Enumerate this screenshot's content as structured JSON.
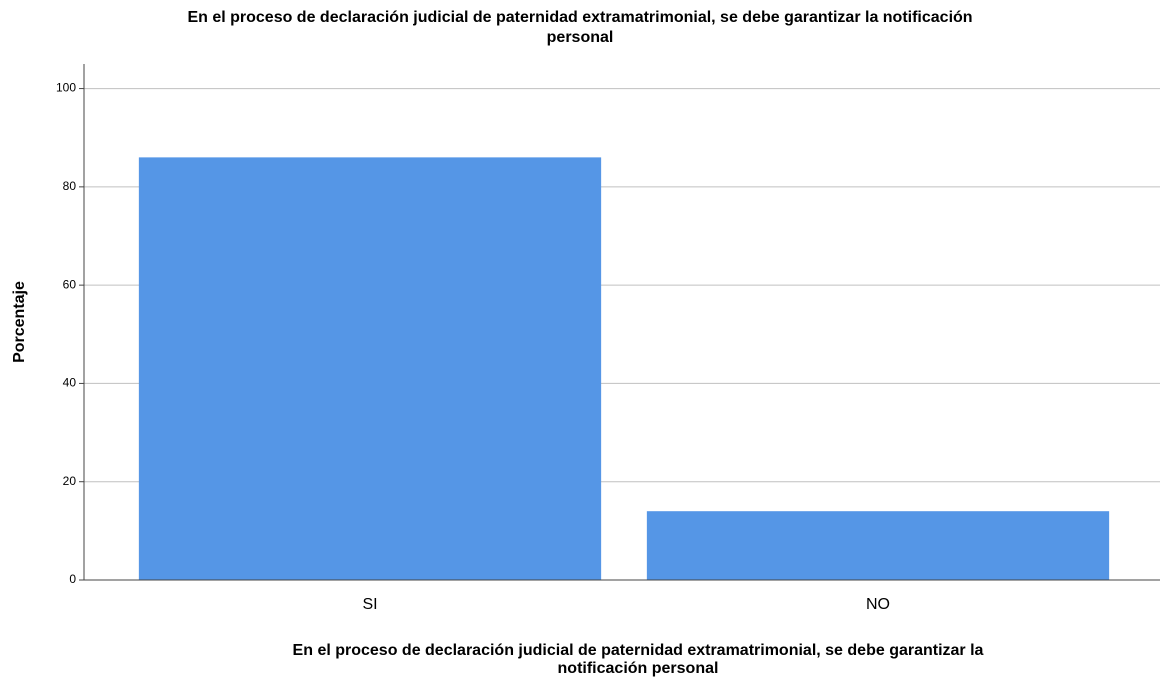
{
  "chart_data": {
    "type": "bar",
    "title": [
      "En el proceso de declaración judicial de paternidad extramatrimonial, se debe garantizar la notificación",
      "personal"
    ],
    "x_label": [
      "En el proceso de declaración judicial de paternidad extramatrimonial, se debe garantizar la",
      "notificación personal"
    ],
    "y_label": "Porcentaje",
    "categories": [
      "SI",
      "NO"
    ],
    "values": [
      86,
      14
    ],
    "color": "#5596e6",
    "ylim": [
      0,
      105
    ],
    "yticks": [
      0,
      20,
      40,
      60,
      80,
      100
    ],
    "grid": true
  }
}
